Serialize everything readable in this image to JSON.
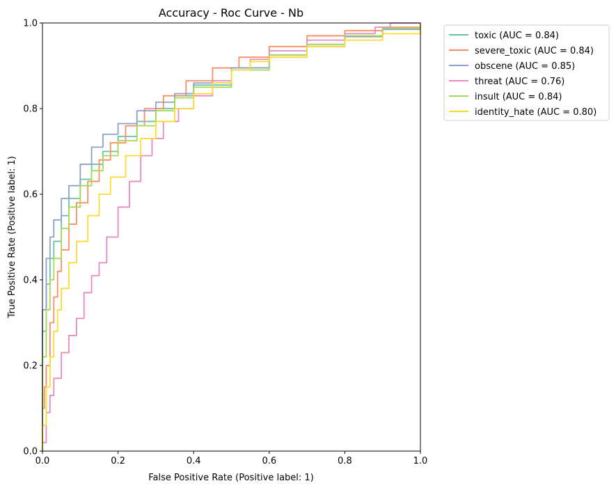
{
  "chart_data": {
    "type": "line",
    "title": "Accuracy - Roc Curve - Nb",
    "xlabel": "False Positive Rate (Positive label: 1)",
    "ylabel": "True Positive Rate (Positive label: 1)",
    "xlim": [
      0,
      1
    ],
    "ylim": [
      0,
      1
    ],
    "xticks": [
      0.0,
      0.2,
      0.4,
      0.6,
      0.8,
      1.0
    ],
    "yticks": [
      0.0,
      0.2,
      0.4,
      0.6,
      0.8,
      1.0
    ],
    "xtick_labels": [
      "0.0",
      "0.2",
      "0.4",
      "0.6",
      "0.8",
      "1.0"
    ],
    "ytick_labels": [
      "0.0",
      "0.2",
      "0.4",
      "0.6",
      "0.8",
      "1.0"
    ],
    "grid": false,
    "legend_position": "outside-right-top",
    "series": [
      {
        "name": "toxic (AUC = 0.84)",
        "color": "#66c2a5",
        "points": [
          [
            0,
            0
          ],
          [
            0,
            0.28
          ],
          [
            0.01,
            0.39
          ],
          [
            0.02,
            0.45
          ],
          [
            0.03,
            0.49
          ],
          [
            0.05,
            0.55
          ],
          [
            0.07,
            0.59
          ],
          [
            0.1,
            0.635
          ],
          [
            0.13,
            0.67
          ],
          [
            0.16,
            0.7
          ],
          [
            0.2,
            0.735
          ],
          [
            0.25,
            0.77
          ],
          [
            0.3,
            0.8
          ],
          [
            0.35,
            0.83
          ],
          [
            0.4,
            0.855
          ],
          [
            0.5,
            0.895
          ],
          [
            0.6,
            0.925
          ],
          [
            0.7,
            0.95
          ],
          [
            0.8,
            0.97
          ],
          [
            0.9,
            0.988
          ],
          [
            1.0,
            1.0
          ]
        ]
      },
      {
        "name": "severe_toxic (AUC = 0.84)",
        "color": "#fc8d62",
        "points": [
          [
            0,
            0
          ],
          [
            0,
            0.1
          ],
          [
            0.005,
            0.15
          ],
          [
            0.01,
            0.2
          ],
          [
            0.02,
            0.3
          ],
          [
            0.03,
            0.36
          ],
          [
            0.04,
            0.42
          ],
          [
            0.05,
            0.47
          ],
          [
            0.07,
            0.53
          ],
          [
            0.09,
            0.58
          ],
          [
            0.12,
            0.63
          ],
          [
            0.15,
            0.68
          ],
          [
            0.18,
            0.72
          ],
          [
            0.22,
            0.76
          ],
          [
            0.27,
            0.8
          ],
          [
            0.32,
            0.83
          ],
          [
            0.38,
            0.865
          ],
          [
            0.45,
            0.895
          ],
          [
            0.52,
            0.92
          ],
          [
            0.6,
            0.945
          ],
          [
            0.7,
            0.97
          ],
          [
            0.8,
            0.982
          ],
          [
            0.9,
            0.99
          ],
          [
            1.0,
            1.0
          ]
        ]
      },
      {
        "name": "obscene (AUC = 0.85)",
        "color": "#8da0cb",
        "points": [
          [
            0,
            0
          ],
          [
            0,
            0.33
          ],
          [
            0.01,
            0.45
          ],
          [
            0.02,
            0.5
          ],
          [
            0.03,
            0.54
          ],
          [
            0.05,
            0.59
          ],
          [
            0.07,
            0.62
          ],
          [
            0.1,
            0.67
          ],
          [
            0.13,
            0.71
          ],
          [
            0.16,
            0.74
          ],
          [
            0.2,
            0.765
          ],
          [
            0.25,
            0.795
          ],
          [
            0.3,
            0.815
          ],
          [
            0.35,
            0.835
          ],
          [
            0.4,
            0.86
          ],
          [
            0.5,
            0.895
          ],
          [
            0.6,
            0.925
          ],
          [
            0.7,
            0.945
          ],
          [
            0.8,
            0.968
          ],
          [
            0.9,
            0.985
          ],
          [
            1.0,
            1.0
          ]
        ]
      },
      {
        "name": "threat (AUC = 0.76)",
        "color": "#e78ac3",
        "points": [
          [
            0,
            0
          ],
          [
            0,
            0.02
          ],
          [
            0.01,
            0.09
          ],
          [
            0.02,
            0.13
          ],
          [
            0.03,
            0.17
          ],
          [
            0.05,
            0.23
          ],
          [
            0.07,
            0.27
          ],
          [
            0.09,
            0.31
          ],
          [
            0.11,
            0.37
          ],
          [
            0.13,
            0.41
          ],
          [
            0.15,
            0.44
          ],
          [
            0.17,
            0.5
          ],
          [
            0.2,
            0.57
          ],
          [
            0.23,
            0.63
          ],
          [
            0.26,
            0.69
          ],
          [
            0.29,
            0.73
          ],
          [
            0.32,
            0.77
          ],
          [
            0.36,
            0.8
          ],
          [
            0.4,
            0.83
          ],
          [
            0.45,
            0.865
          ],
          [
            0.5,
            0.89
          ],
          [
            0.55,
            0.915
          ],
          [
            0.6,
            0.935
          ],
          [
            0.7,
            0.96
          ],
          [
            0.8,
            0.975
          ],
          [
            0.88,
            0.99
          ],
          [
            0.92,
            1.0
          ],
          [
            1.0,
            1.0
          ]
        ]
      },
      {
        "name": "insult (AUC = 0.84)",
        "color": "#a6d854",
        "points": [
          [
            0,
            0
          ],
          [
            0,
            0.22
          ],
          [
            0.01,
            0.33
          ],
          [
            0.02,
            0.4
          ],
          [
            0.03,
            0.45
          ],
          [
            0.05,
            0.52
          ],
          [
            0.07,
            0.57
          ],
          [
            0.1,
            0.62
          ],
          [
            0.13,
            0.655
          ],
          [
            0.16,
            0.69
          ],
          [
            0.2,
            0.725
          ],
          [
            0.25,
            0.76
          ],
          [
            0.3,
            0.795
          ],
          [
            0.35,
            0.825
          ],
          [
            0.4,
            0.85
          ],
          [
            0.5,
            0.89
          ],
          [
            0.6,
            0.925
          ],
          [
            0.7,
            0.95
          ],
          [
            0.8,
            0.97
          ],
          [
            0.9,
            0.988
          ],
          [
            1.0,
            1.0
          ]
        ]
      },
      {
        "name": "identity_hate (AUC = 0.80)",
        "color": "#ffd92f",
        "points": [
          [
            0,
            0
          ],
          [
            0,
            0.06
          ],
          [
            0.01,
            0.15
          ],
          [
            0.02,
            0.22
          ],
          [
            0.03,
            0.28
          ],
          [
            0.04,
            0.33
          ],
          [
            0.05,
            0.38
          ],
          [
            0.07,
            0.44
          ],
          [
            0.09,
            0.49
          ],
          [
            0.12,
            0.55
          ],
          [
            0.15,
            0.6
          ],
          [
            0.18,
            0.64
          ],
          [
            0.22,
            0.69
          ],
          [
            0.26,
            0.73
          ],
          [
            0.3,
            0.77
          ],
          [
            0.35,
            0.8
          ],
          [
            0.4,
            0.835
          ],
          [
            0.45,
            0.86
          ],
          [
            0.5,
            0.89
          ],
          [
            0.55,
            0.91
          ],
          [
            0.6,
            0.92
          ],
          [
            0.7,
            0.945
          ],
          [
            0.8,
            0.96
          ],
          [
            0.9,
            0.975
          ],
          [
            1.0,
            1.0
          ]
        ]
      }
    ]
  }
}
